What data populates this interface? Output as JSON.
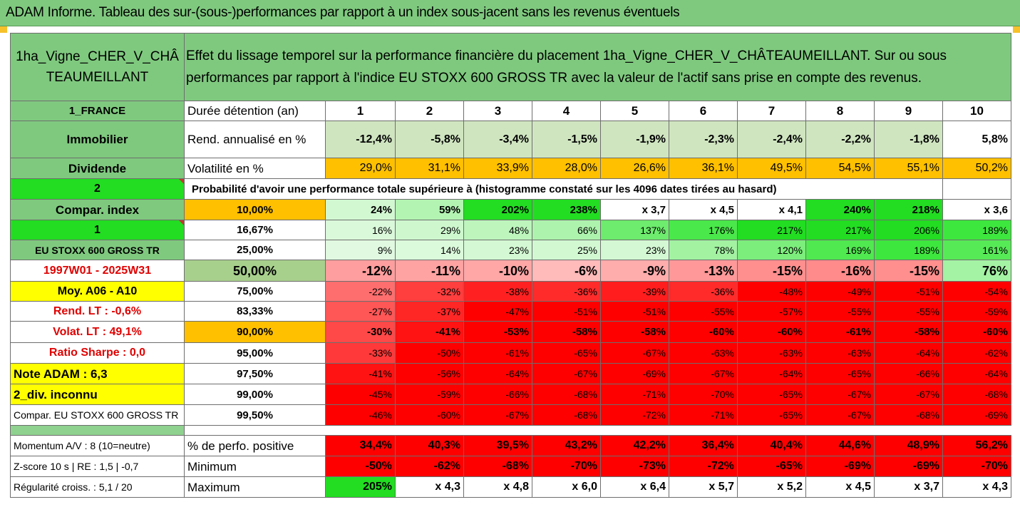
{
  "title": "ADAM Informe. Tableau des sur-(sous-)performances par rapport à un index sous-jacent sans les revenus éventuels",
  "asset_name": "1ha_Vigne_CHER_V_CHÂTEAUMEILLANT",
  "description": "Effet du lissage temporel sur la performance financière du placement 1ha_Vigne_CHER_V_CHÂTEAUMEILLANT. Sur ou sous performances par rapport à l'indice EU STOXX 600 GROSS TR avec la valeur de l'actif sans prise en compte des revenus.",
  "left": {
    "country": "1_FRANCE",
    "category": "Immobilier",
    "dividend": "Dividende",
    "num2": "2",
    "compar_index": "Compar. index",
    "num1": "1",
    "index_name": "EU STOXX 600 GROSS TR",
    "period": "1997W01 - 2025W31",
    "moy": "Moy. A06 - A10",
    "rend_lt": "Rend. LT :   -0,6%",
    "volat_lt": "Volat. LT :   49,1%",
    "sharpe": "Ratio Sharpe :   0,0",
    "note": "Note ADAM : 6,3",
    "div": "2_div. inconnu",
    "compar_full": "Compar. EU STOXX 600 GROSS TR",
    "momentum": "Momentum A/V : 8 (10=neutre)",
    "zscore": "Z-score 10 s | RE : 1,5 | -0,7",
    "regularite": "Régularité croiss. : 5,1 / 20"
  },
  "labels": {
    "duree": "Durée détention (an)",
    "rend": "Rend. annualisé en %",
    "vol": "Volatilité en %",
    "proba": "Probabilité d'avoir une performance totale supérieure à (histogramme constaté sur les 4096 dates tirées au hasard)",
    "perfo_pos": "% de perfo. positive",
    "minimum": "Minimum",
    "maximum": "Maximum"
  },
  "years": [
    "1",
    "2",
    "3",
    "4",
    "5",
    "6",
    "7",
    "8",
    "9",
    "10"
  ],
  "rend": [
    "-12,4%",
    "-5,8%",
    "-3,4%",
    "-1,5%",
    "-1,9%",
    "-2,3%",
    "-2,4%",
    "-2,2%",
    "-1,8%",
    "5,8%"
  ],
  "vol": [
    "29,0%",
    "31,1%",
    "33,9%",
    "28,0%",
    "26,6%",
    "36,1%",
    "49,5%",
    "54,5%",
    "55,1%",
    "50,2%"
  ],
  "quantiles": [
    {
      "q": "10,00%",
      "v": [
        "24%",
        "59%",
        "202%",
        "238%",
        "x 3,7",
        "x 4,5",
        "x 4,1",
        "240%",
        "218%",
        "x 3,6"
      ]
    },
    {
      "q": "16,67%",
      "v": [
        "16%",
        "29%",
        "48%",
        "66%",
        "137%",
        "176%",
        "217%",
        "217%",
        "206%",
        "189%"
      ]
    },
    {
      "q": "25,00%",
      "v": [
        "9%",
        "14%",
        "23%",
        "25%",
        "23%",
        "78%",
        "120%",
        "169%",
        "189%",
        "161%"
      ]
    },
    {
      "q": "50,00%",
      "v": [
        "-12%",
        "-11%",
        "-10%",
        "-6%",
        "-9%",
        "-13%",
        "-15%",
        "-16%",
        "-15%",
        "76%"
      ]
    },
    {
      "q": "75,00%",
      "v": [
        "-22%",
        "-32%",
        "-38%",
        "-36%",
        "-39%",
        "-36%",
        "-48%",
        "-49%",
        "-51%",
        "-54%"
      ]
    },
    {
      "q": "83,33%",
      "v": [
        "-27%",
        "-37%",
        "-47%",
        "-51%",
        "-51%",
        "-55%",
        "-57%",
        "-55%",
        "-55%",
        "-59%"
      ]
    },
    {
      "q": "90,00%",
      "v": [
        "-30%",
        "-41%",
        "-53%",
        "-58%",
        "-58%",
        "-60%",
        "-60%",
        "-61%",
        "-58%",
        "-60%"
      ]
    },
    {
      "q": "95,00%",
      "v": [
        "-33%",
        "-50%",
        "-61%",
        "-65%",
        "-67%",
        "-63%",
        "-63%",
        "-63%",
        "-64%",
        "-62%"
      ]
    },
    {
      "q": "97,50%",
      "v": [
        "-41%",
        "-56%",
        "-64%",
        "-67%",
        "-69%",
        "-67%",
        "-64%",
        "-65%",
        "-66%",
        "-64%"
      ]
    },
    {
      "q": "99,00%",
      "v": [
        "-45%",
        "-59%",
        "-66%",
        "-68%",
        "-71%",
        "-70%",
        "-65%",
        "-67%",
        "-67%",
        "-68%"
      ]
    },
    {
      "q": "99,50%",
      "v": [
        "-46%",
        "-60%",
        "-67%",
        "-68%",
        "-72%",
        "-71%",
        "-65%",
        "-67%",
        "-68%",
        "-69%"
      ]
    }
  ],
  "perfo_pos": [
    "34,4%",
    "40,3%",
    "39,5%",
    "43,2%",
    "42,2%",
    "36,4%",
    "40,4%",
    "44,6%",
    "48,9%",
    "56,2%"
  ],
  "minimum": [
    "-50%",
    "-62%",
    "-68%",
    "-70%",
    "-73%",
    "-72%",
    "-65%",
    "-69%",
    "-69%",
    "-70%"
  ],
  "maximum": [
    "205%",
    "x 4,3",
    "x 4,8",
    "x 6,0",
    "x 6,4",
    "x 5,7",
    "x 5,2",
    "x 4,5",
    "x 3,7",
    "x 4,3"
  ],
  "colors": {
    "header_green": "#7fc97f",
    "bright_green": "#22dd22",
    "yellow": "#ffff00",
    "orange": "#ffc000",
    "red_text": "#e00000",
    "red": "#ff0000"
  }
}
